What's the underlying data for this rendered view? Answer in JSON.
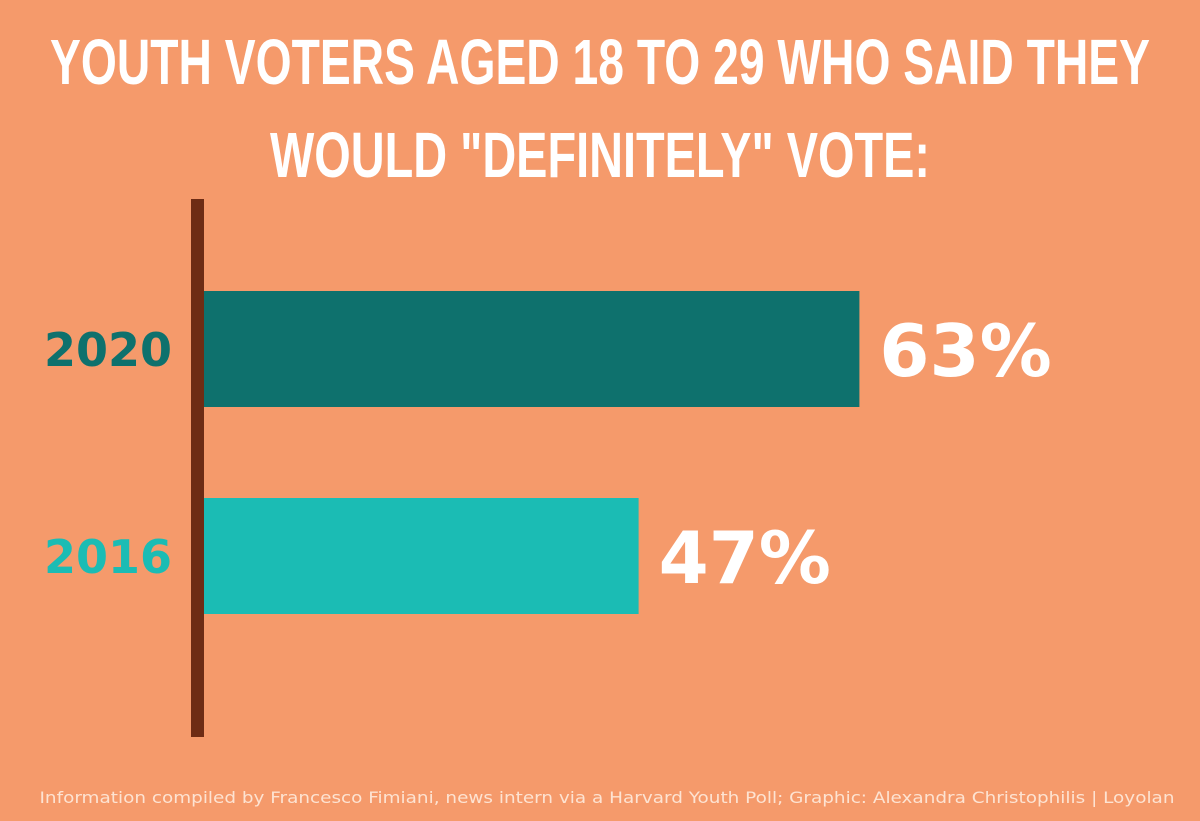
{
  "chart_data": {
    "type": "bar",
    "orientation": "horizontal",
    "title_lines": [
      "YOUTH VOTERS AGED 18 TO 29 WHO SAID THEY",
      "WOULD \"DEFINITELY\" VOTE:"
    ],
    "categories": [
      "2020",
      "2016"
    ],
    "values": [
      63,
      47
    ],
    "data_labels": [
      "63%",
      "47%"
    ],
    "unit": "%",
    "grid": false,
    "colors": {
      "background": "#f59a6b",
      "axis": "#6e2c14",
      "bars": [
        "#0e716d",
        "#1bbcb4"
      ],
      "data_label": "#ffffff"
    }
  },
  "footer": "Information compiled by Francesco Fimiani, news intern via a Harvard Youth Poll; Graphic: Alexandra Christophilis | Loyolan"
}
